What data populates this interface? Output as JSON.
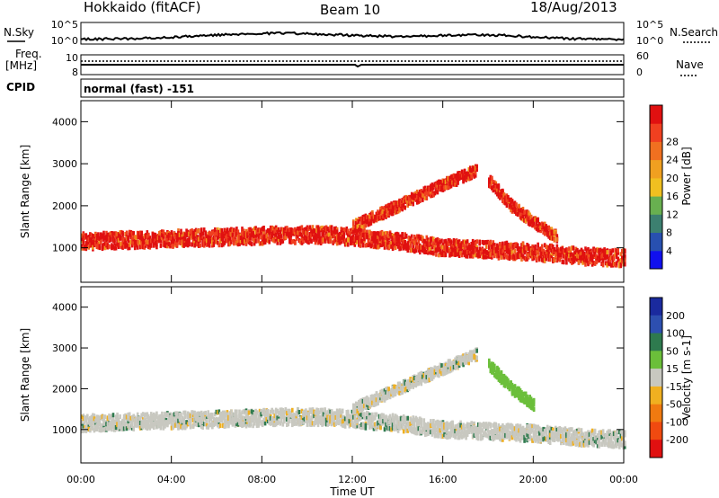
{
  "header": {
    "station": "Hokkaido (fitACF)",
    "beam": "Beam 10",
    "date": "18/Aug/2013"
  },
  "top_panel": {
    "nsky_label": "N.Sky",
    "nsearch_label": "N.Search",
    "freq_label_1": "Freq.",
    "freq_label_2": "[MHz]",
    "nave_label": "Nave",
    "cpid_label": "CPID",
    "cpid_text": "normal (fast) -151",
    "noise_ticks_left": [
      "10^5",
      "10^0"
    ],
    "noise_ticks_right": [
      "10^5",
      "10^0"
    ],
    "freq_ticks": [
      "10",
      "8"
    ],
    "nave_ticks": [
      "60",
      "0"
    ]
  },
  "chart_data": [
    {
      "type": "heatmap",
      "panel": "power",
      "ylabel": "Slant Range [km]",
      "xlabel": "",
      "xlim": [
        0,
        24
      ],
      "ylim": [
        180,
        4500
      ],
      "y_ticks": [
        "1000",
        "2000",
        "3000",
        "4000"
      ],
      "x_ticks": [
        "00:00",
        "04:00",
        "08:00",
        "12:00",
        "16:00",
        "20:00",
        "00:00"
      ],
      "colorbar": {
        "label": "Power [dB]",
        "ticks": [
          "4",
          "8",
          "12",
          "16",
          "20",
          "24",
          "28"
        ],
        "colors": [
          "#1010ee",
          "#2850b0",
          "#3c8070",
          "#68b050",
          "#f0c020",
          "#f0a020",
          "#f07020",
          "#f04020",
          "#e01010"
        ]
      },
      "features": [
        {
          "name": "main band",
          "x": [
            0,
            3,
            6,
            9,
            11,
            12,
            14,
            16,
            18,
            20,
            22,
            24
          ],
          "y": [
            1150,
            1200,
            1250,
            1300,
            1300,
            1250,
            1150,
            1000,
            950,
            900,
            800,
            750
          ],
          "level": "high"
        },
        {
          "name": "rising arc",
          "x": [
            12,
            14,
            16,
            17.5
          ],
          "y": [
            1500,
            2000,
            2500,
            2850
          ],
          "level": "high"
        },
        {
          "name": "falling arc",
          "x": [
            18,
            19,
            20,
            21
          ],
          "y": [
            2600,
            2000,
            1600,
            1250
          ],
          "level": "high"
        }
      ]
    },
    {
      "type": "heatmap",
      "panel": "velocity",
      "ylabel": "Slant Range [km]",
      "xlabel": "Time UT",
      "xlim": [
        0,
        24
      ],
      "ylim": [
        180,
        4500
      ],
      "y_ticks": [
        "1000",
        "2000",
        "3000",
        "4000"
      ],
      "x_ticks": [
        "00:00",
        "04:00",
        "08:00",
        "12:00",
        "16:00",
        "20:00",
        "00:00"
      ],
      "colorbar": {
        "label": "Velocity [m s-1]",
        "ticks": [
          "200",
          "100",
          "50",
          "15",
          "-15",
          "-50",
          "-100",
          "-200"
        ],
        "colors": [
          "#1a2a9e",
          "#2d4fb0",
          "#2e7a4e",
          "#6bbf3a",
          "#c8c8c0",
          "#f0b020",
          "#f07a10",
          "#f04a10",
          "#e01010"
        ]
      },
      "features": [
        {
          "name": "ground scatter band",
          "x": [
            0,
            3,
            6,
            9,
            11,
            12,
            14,
            16,
            18,
            20,
            22,
            24
          ],
          "y": [
            1150,
            1200,
            1250,
            1300,
            1300,
            1250,
            1150,
            1000,
            950,
            900,
            800,
            750
          ],
          "velocity": 0
        },
        {
          "name": "rising arc",
          "x": [
            12,
            14,
            16,
            17.5
          ],
          "y": [
            1500,
            2000,
            2500,
            2850
          ],
          "velocity": 0
        },
        {
          "name": "falling arc",
          "x": [
            18,
            19,
            20
          ],
          "y": [
            2600,
            2000,
            1600
          ],
          "velocity": 60
        }
      ]
    }
  ]
}
